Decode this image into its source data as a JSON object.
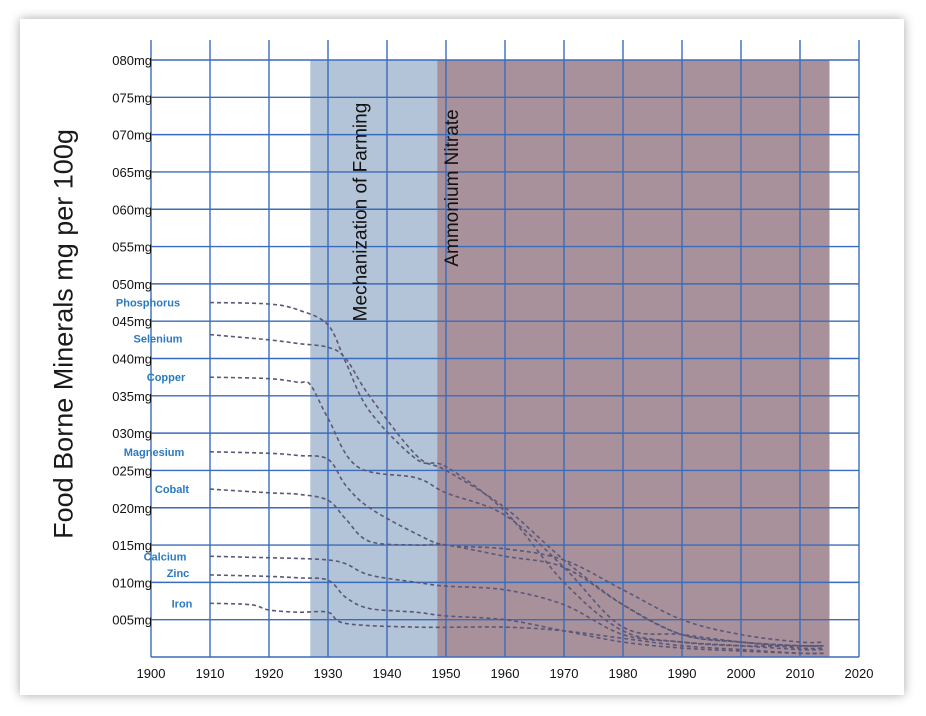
{
  "chart_data": {
    "type": "line",
    "title": "",
    "xlabel": "",
    "ylabel": "Food Borne Minerals mg per 100g",
    "xlim": [
      1900,
      2020
    ],
    "ylim": [
      0,
      80
    ],
    "grid": true,
    "x_ticks": [
      "1900",
      "1910",
      "1920",
      "1930",
      "1940",
      "1950",
      "1960",
      "1970",
      "1980",
      "1990",
      "2000",
      "2010",
      "2020"
    ],
    "y_ticks": [
      "005mg",
      "010mg",
      "015mg",
      "020mg",
      "025mg",
      "030mg",
      "035mg",
      "040mg",
      "045mg",
      "050mg",
      "055mg",
      "060mg",
      "065mg",
      "070mg",
      "075mg",
      "080mg"
    ],
    "regions": [
      {
        "label": "Mechanization of Farming",
        "x_start": 1927,
        "x_end": 1948.5,
        "color": "#b3c4d8"
      },
      {
        "label": "Ammonium Nitrate",
        "x_start": 1948.5,
        "x_end": 2015,
        "color": "#a9919b"
      }
    ],
    "series": [
      {
        "name": "Phosphorus",
        "x": [
          1910,
          1920,
          1925,
          1930,
          1933,
          1937,
          1945,
          1950,
          1960,
          1970,
          1980,
          1990,
          2000,
          2010,
          2014
        ],
        "values": [
          47.5,
          47.3,
          46.5,
          44.5,
          39.5,
          33,
          26.5,
          25.5,
          19.5,
          10,
          3.5,
          2,
          1.5,
          1.5,
          1.5
        ]
      },
      {
        "name": "Selenium",
        "x": [
          1910,
          1920,
          1925,
          1930,
          1933,
          1937,
          1945,
          1950,
          1960,
          1970,
          1980,
          1990,
          2000,
          2010,
          2014
        ],
        "values": [
          43.2,
          42.5,
          42,
          41.5,
          40,
          35,
          27,
          25,
          20,
          13,
          7,
          3,
          2,
          1.5,
          1.5
        ]
      },
      {
        "name": "Copper",
        "x": [
          1910,
          1920,
          1925,
          1927,
          1930,
          1935,
          1945,
          1950,
          1960,
          1970,
          1980,
          1990,
          2000,
          2010,
          2014
        ],
        "values": [
          37.5,
          37.3,
          36.8,
          36.5,
          32,
          25.5,
          24,
          22,
          19,
          12,
          4,
          3,
          2,
          1.2,
          1.2
        ]
      },
      {
        "name": "Magnesium",
        "x": [
          1910,
          1920,
          1925,
          1930,
          1933,
          1937,
          1945,
          1950,
          1960,
          1970,
          1980,
          1990,
          2000,
          2010,
          2014
        ],
        "values": [
          27.5,
          27.3,
          27,
          26.5,
          23,
          20,
          16.5,
          15,
          14.5,
          13,
          9,
          5,
          3,
          2,
          2
        ]
      },
      {
        "name": "Cobalt",
        "x": [
          1910,
          1920,
          1925,
          1930,
          1933,
          1937,
          1945,
          1950,
          1960,
          1970,
          1980,
          1990,
          2000,
          2010,
          2014
        ],
        "values": [
          22.5,
          22,
          21.8,
          21,
          18.5,
          15.5,
          15,
          15,
          13.5,
          12,
          7,
          3,
          2,
          1.5,
          1.5
        ]
      },
      {
        "name": "Calcium",
        "x": [
          1910,
          1920,
          1925,
          1930,
          1933,
          1937,
          1945,
          1950,
          1960,
          1970,
          1980,
          1990,
          2000,
          2010,
          2014
        ],
        "values": [
          13.5,
          13.3,
          13.2,
          13,
          12.5,
          11,
          10,
          9.5,
          9,
          7,
          3,
          2,
          1.5,
          1,
          1
        ]
      },
      {
        "name": "Zinc",
        "x": [
          1910,
          1920,
          1925,
          1930,
          1933,
          1937,
          1945,
          1950,
          1960,
          1970,
          1980,
          1990,
          2000,
          2010,
          2014
        ],
        "values": [
          11,
          10.8,
          10.6,
          10.3,
          8,
          6.5,
          6,
          5.5,
          5,
          3.5,
          2,
          1.2,
          0.8,
          0.5,
          0.5
        ]
      },
      {
        "name": "Iron",
        "x": [
          1910,
          1917,
          1920,
          1925,
          1930,
          1933,
          1945,
          1960,
          1970,
          1980,
          1990,
          2000,
          2010,
          2014
        ],
        "values": [
          7.2,
          7,
          6.3,
          6,
          6,
          4.5,
          4,
          4,
          3.5,
          2.5,
          1.5,
          1,
          0.5,
          0.5
        ]
      }
    ]
  },
  "colors": {
    "grid": "#3a6cbc",
    "line": "#5a5878",
    "mineral_label": "#2a7ac0"
  }
}
